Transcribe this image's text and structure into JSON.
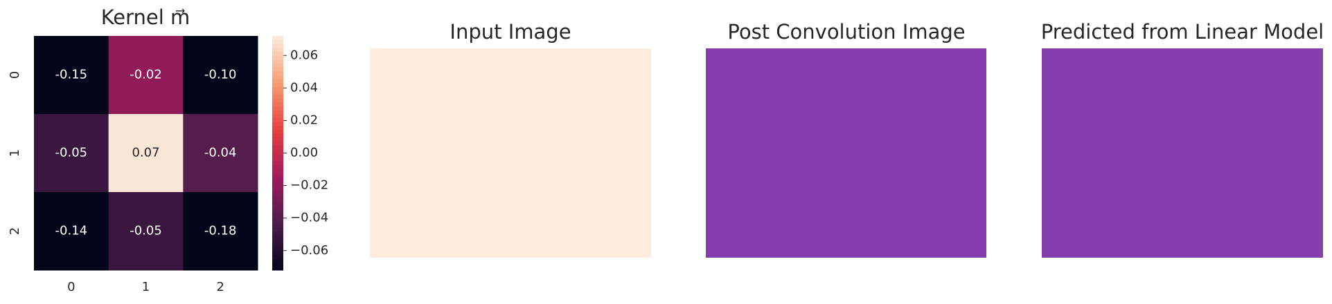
{
  "chart_data": {
    "type": "heatmap",
    "title": "Kernel m⃗",
    "x_categories": [
      "0",
      "1",
      "2"
    ],
    "y_categories": [
      "0",
      "1",
      "2"
    ],
    "values": [
      [
        -0.15,
        -0.02,
        -0.1
      ],
      [
        -0.05,
        0.07,
        -0.04
      ],
      [
        -0.14,
        -0.05,
        -0.18
      ]
    ],
    "value_labels": [
      [
        "-0.15",
        "-0.02",
        "-0.10"
      ],
      [
        "-0.05",
        "0.07",
        "-0.04"
      ],
      [
        "-0.14",
        "-0.05",
        "-0.18"
      ]
    ],
    "colormap": "rocket",
    "colorbar": {
      "ylim": [
        -0.072,
        0.072
      ],
      "yticks": [
        {
          "value": -0.06,
          "label": "−0.06"
        },
        {
          "value": -0.04,
          "label": "−0.04"
        },
        {
          "value": -0.02,
          "label": "−0.02"
        },
        {
          "value": 0,
          "label": "0.00"
        },
        0.02,
        0.04,
        0.06
      ]
    }
  },
  "panels": [
    {
      "title": "Input Image"
    },
    {
      "title": "Post Convolution Image"
    },
    {
      "title": "Predicted from Linear Model"
    }
  ]
}
